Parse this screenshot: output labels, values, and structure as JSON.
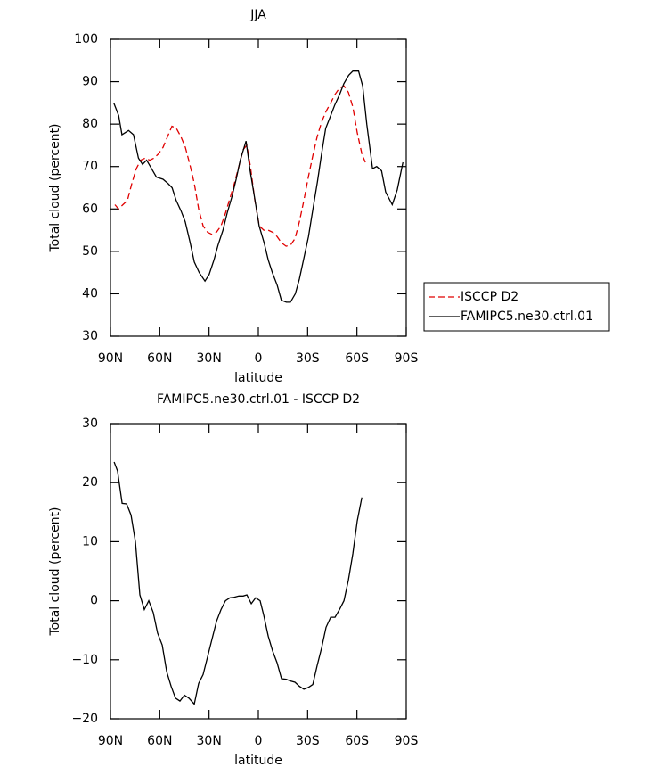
{
  "chart_data": [
    {
      "type": "line",
      "title": "JJA",
      "xlabel": "latitude",
      "ylabel": "Total cloud (percent)",
      "xlim": [
        90,
        -90
      ],
      "xticks": [
        {
          "value": 90,
          "label": "90N"
        },
        {
          "value": 60,
          "label": "60N"
        },
        {
          "value": 30,
          "label": "30N"
        },
        0,
        {
          "value": -30,
          "label": "30S"
        },
        {
          "value": -60,
          "label": "60S"
        },
        {
          "value": -90,
          "label": "90S"
        }
      ],
      "ylim": [
        30,
        100
      ],
      "yticks": [
        30,
        40,
        50,
        60,
        70,
        80,
        90,
        100
      ],
      "legend": "right",
      "series": [
        {
          "name": "ISCCP D2",
          "color": "#e00000",
          "dash": true,
          "x": [
            87.3,
            85.1,
            82.4,
            79.7,
            77,
            74.3,
            71.6,
            68.8,
            66.1,
            63.4,
            60.7,
            58,
            55.3,
            52.6,
            49.9,
            47.1,
            44.4,
            41.7,
            39,
            36.3,
            33.6,
            30.9,
            28.2,
            25.5,
            22.7,
            20,
            17.3,
            14.6,
            11.9,
            9.2,
            7,
            4.8,
            2.1,
            -0.6,
            -3.3,
            -6,
            -8.7,
            -11.4,
            -14.1,
            -16.9,
            -19.6,
            -22.3,
            -25,
            -27.7,
            -30.4,
            -33.1,
            -35.8,
            -38.5,
            -41.2,
            -44,
            -46.7,
            -49.4,
            -52.1,
            -54.8,
            -57.5,
            -60.2,
            -63,
            -65.1
          ],
          "values": [
            61,
            60,
            61,
            62,
            66,
            69.5,
            71.5,
            72,
            71.5,
            72,
            73,
            74.5,
            77,
            79.5,
            79,
            77,
            74.5,
            70.5,
            66,
            60,
            56,
            54.5,
            54,
            54.5,
            56,
            59,
            62.5,
            66,
            70,
            74,
            75,
            70,
            62,
            56,
            55,
            55,
            54.5,
            53.5,
            52,
            51.2,
            51.5,
            53,
            57,
            62,
            67.5,
            72.5,
            77,
            80.5,
            83,
            85,
            87,
            88.5,
            89,
            87.5,
            84,
            78,
            73,
            71
          ]
        },
        {
          "name": "FAMIPC5.ne30.ctrl.01",
          "color": "#000000",
          "dash": false,
          "x": [
            88,
            85,
            83,
            79,
            76,
            73,
            70.5,
            68,
            65,
            62,
            58,
            55,
            52.5,
            50,
            47,
            44.5,
            41.5,
            39,
            36,
            32.5,
            30,
            27,
            24.5,
            21.5,
            19,
            16,
            13.5,
            11,
            7.5,
            5,
            2,
            -0.5,
            -3.5,
            -6,
            -8.5,
            -11.5,
            -14,
            -17,
            -19.5,
            -22.5,
            -25,
            -27.5,
            -30.5,
            -33,
            -36,
            -38.5,
            -41,
            -44,
            -46.5,
            -49.5,
            -52,
            -55,
            -57.5,
            -61,
            -63.5,
            -66,
            -69.5,
            -72,
            -75,
            -77.5,
            -81.5,
            -84.5,
            -88
          ],
          "values": [
            85,
            82,
            77.5,
            78.5,
            77.5,
            72,
            70.5,
            71.5,
            69.5,
            67.5,
            67,
            66,
            65,
            62,
            59.5,
            57,
            52,
            47.5,
            45,
            43,
            44.5,
            48,
            51.5,
            55,
            59,
            63,
            67,
            71.5,
            76,
            69,
            62,
            56,
            52,
            48,
            45,
            42,
            38.5,
            38,
            38,
            40,
            43.5,
            48,
            53.5,
            59.5,
            66.5,
            73,
            79,
            82,
            84.5,
            87,
            89.5,
            91.5,
            92.5,
            92.5,
            89,
            80,
            69.5,
            70,
            69,
            64,
            61,
            64.5,
            71
          ]
        }
      ]
    },
    {
      "type": "line",
      "title": "FAMIPC5.ne30.ctrl.01 - ISCCP D2",
      "xlabel": "latitude",
      "ylabel": "Total cloud (percent)",
      "xlim": [
        90,
        -90
      ],
      "xticks": [
        {
          "value": 90,
          "label": "90N"
        },
        {
          "value": 60,
          "label": "60N"
        },
        {
          "value": 30,
          "label": "30N"
        },
        0,
        {
          "value": -30,
          "label": "30S"
        },
        {
          "value": -60,
          "label": "60S"
        },
        {
          "value": -90,
          "label": "90S"
        }
      ],
      "ylim": [
        -20,
        30
      ],
      "yticks": [
        {
          "value": -20,
          "label": "−20"
        },
        {
          "value": -10,
          "label": "−10"
        },
        0,
        10,
        20,
        30
      ],
      "series": [
        {
          "color": "#000000",
          "dash": false,
          "x": [
            87.8,
            85.7,
            82.9,
            80.2,
            77.5,
            74.8,
            72.1,
            69.4,
            66.7,
            64,
            61.3,
            58.5,
            55.8,
            53.1,
            50.4,
            47.7,
            45,
            42.3,
            39,
            36.3,
            33.6,
            30.9,
            28.2,
            25.5,
            22.7,
            20,
            17.3,
            14.6,
            11.9,
            9.2,
            7,
            4.3,
            1.6,
            -1.1,
            -3.3,
            -6,
            -8.7,
            -11.4,
            -14.1,
            -16.9,
            -19.6,
            -22.3,
            -25,
            -27.7,
            -30.4,
            -33.1,
            -35.8,
            -38.5,
            -41.2,
            -44,
            -46.7,
            -49.4,
            -52.1,
            -54.8,
            -57.5,
            -60.2,
            -63
          ],
          "values": [
            23.5,
            22,
            16.5,
            16.4,
            14.5,
            10,
            1,
            -1.5,
            0,
            -2,
            -5.5,
            -7.5,
            -12,
            -14.5,
            -16.5,
            -17,
            -16,
            -16.5,
            -17.5,
            -14,
            -12.5,
            -9.5,
            -6.5,
            -3.5,
            -1.5,
            0,
            0.5,
            0.6,
            0.8,
            0.8,
            1,
            -0.5,
            0.5,
            0,
            -2.5,
            -6,
            -8.5,
            -10.5,
            -13.2,
            -13.3,
            -13.6,
            -13.8,
            -14.5,
            -15,
            -14.7,
            -14.2,
            -11,
            -8,
            -4.5,
            -2.8,
            -2.8,
            -1.5,
            0,
            3.5,
            8,
            13.5,
            17.5
          ]
        }
      ]
    }
  ]
}
